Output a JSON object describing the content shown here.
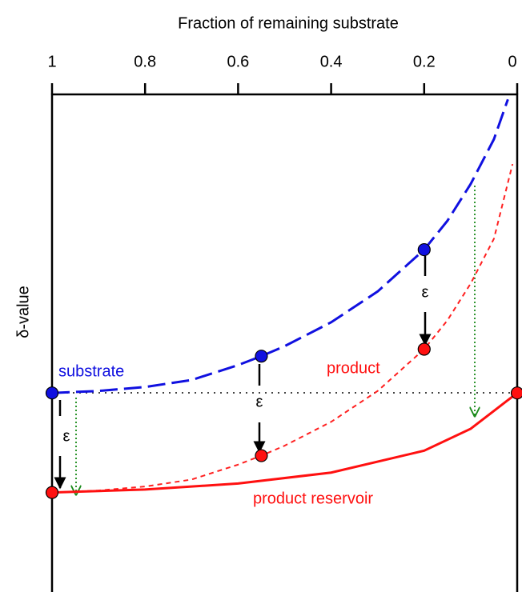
{
  "chart_data": {
    "type": "line",
    "x_label": "Fraction of remaining substrate",
    "y_label": "δ-value",
    "xlim": [
      1,
      0
    ],
    "xticks": [
      1,
      0.8,
      0.6,
      0.4,
      0.2,
      0
    ],
    "ylim": [
      -20,
      30
    ],
    "series": [
      {
        "name": "substrate",
        "color": "#1010e0",
        "style": "long-dash",
        "x": [
          1,
          0.9,
          0.8,
          0.7,
          0.6,
          0.55,
          0.5,
          0.4,
          0.3,
          0.2,
          0.15,
          0.1,
          0.05,
          0.02
        ],
        "values": [
          0,
          0.2,
          0.6,
          1.3,
          2.8,
          3.7,
          4.7,
          7.1,
          10.2,
          14.4,
          17.3,
          21,
          25.5,
          29.5
        ]
      },
      {
        "name": "product",
        "color": "#ff2020",
        "style": "short-dash",
        "x": [
          1,
          0.9,
          0.8,
          0.7,
          0.6,
          0.55,
          0.5,
          0.4,
          0.3,
          0.2,
          0.15,
          0.1,
          0.05,
          0.01
        ],
        "values": [
          -10,
          -9.8,
          -9.4,
          -8.7,
          -7.2,
          -6.3,
          -5.3,
          -2.9,
          0.2,
          4.4,
          7.3,
          11,
          15.5,
          23
        ]
      },
      {
        "name": "product reservoir",
        "color": "#ff1010",
        "style": "solid",
        "x": [
          1,
          0.8,
          0.6,
          0.4,
          0.2,
          0.1,
          0
        ],
        "values": [
          -10,
          -9.7,
          -9.1,
          -8,
          -5.8,
          -3.6,
          0
        ]
      }
    ],
    "points": {
      "x": [
        1,
        0.55,
        0.2,
        0.55,
        0.2,
        1,
        0
      ],
      "values": [
        0,
        3.7,
        14.4,
        -6.3,
        4.4,
        -10,
        0
      ],
      "colors": [
        "#1010e0",
        "#1010e0",
        "#1010e0",
        "#ff1010",
        "#ff1010",
        "#ff1010",
        "#ff1010"
      ]
    },
    "annotations": [
      "ε",
      "ε",
      "ε"
    ]
  }
}
